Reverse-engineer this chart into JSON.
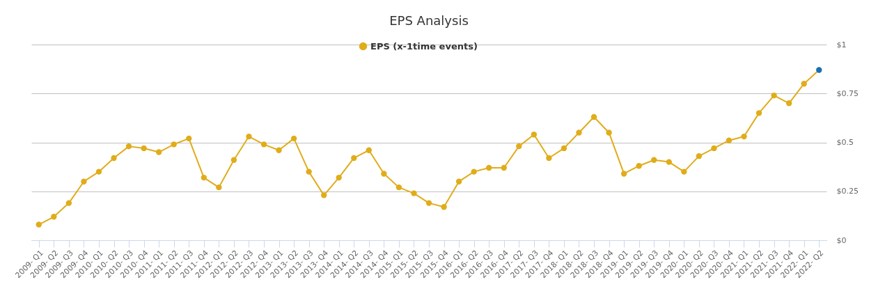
{
  "chart_data": {
    "type": "line",
    "title": "EPS Analysis",
    "categories": [
      "2009- Q1",
      "2009- Q2",
      "2009- Q3",
      "2009- Q4",
      "2010- Q1",
      "2010- Q2",
      "2010- Q3",
      "2010- Q4",
      "2011- Q1",
      "2011- Q2",
      "2011- Q3",
      "2011- Q4",
      "2012- Q1",
      "2012- Q2",
      "2012- Q3",
      "2012- Q4",
      "2013- Q1",
      "2013- Q2",
      "2013- Q3",
      "2013- Q4",
      "2014- Q1",
      "2014- Q2",
      "2014- Q3",
      "2014- Q4",
      "2015- Q1",
      "2015- Q2",
      "2015- Q3",
      "2015- Q4",
      "2016- Q1",
      "2016- Q2",
      "2016- Q3",
      "2016- Q4",
      "2017- Q2",
      "2017- Q3",
      "2017- Q4",
      "2018- Q1",
      "2018- Q2",
      "2018- Q3",
      "2018- Q4",
      "2019- Q1",
      "2019- Q2",
      "2019- Q3",
      "2019- Q4",
      "2020- Q1",
      "2020- Q2",
      "2020- Q3",
      "2020- Q4",
      "2021- Q1",
      "2021- Q2",
      "2021- Q3",
      "2021- Q4",
      "2022- Q1",
      "2022- Q2"
    ],
    "series": [
      {
        "name": "EPS (x-1time events)",
        "color": "#e0ac1a",
        "values": [
          0.08,
          0.12,
          0.19,
          0.3,
          0.35,
          0.42,
          0.48,
          0.47,
          0.45,
          0.49,
          0.52,
          0.32,
          0.27,
          0.41,
          0.53,
          0.49,
          0.46,
          0.52,
          0.35,
          0.23,
          0.32,
          0.42,
          0.46,
          0.34,
          0.27,
          0.24,
          0.19,
          0.17,
          0.3,
          0.35,
          0.37,
          0.37,
          0.48,
          0.54,
          0.42,
          0.47,
          0.55,
          0.63,
          0.55,
          0.34,
          0.38,
          0.41,
          0.4,
          0.35,
          0.43,
          0.47,
          0.51,
          0.53,
          0.65,
          0.74,
          0.7,
          0.8,
          0.87
        ],
        "colors": [
          "#e0ac1a",
          "#e0ac1a",
          "#e0ac1a",
          "#e0ac1a",
          "#e0ac1a",
          "#e0ac1a",
          "#e0ac1a",
          "#e0ac1a",
          "#e0ac1a",
          "#e0ac1a",
          "#e0ac1a",
          "#e0ac1a",
          "#e0ac1a",
          "#e0ac1a",
          "#e0ac1a",
          "#e0ac1a",
          "#e0ac1a",
          "#e0ac1a",
          "#e0ac1a",
          "#e0ac1a",
          "#e0ac1a",
          "#e0ac1a",
          "#e0ac1a",
          "#e0ac1a",
          "#e0ac1a",
          "#e0ac1a",
          "#e0ac1a",
          "#e0ac1a",
          "#e0ac1a",
          "#e0ac1a",
          "#e0ac1a",
          "#e0ac1a",
          "#e0ac1a",
          "#e0ac1a",
          "#e0ac1a",
          "#e0ac1a",
          "#e0ac1a",
          "#e0ac1a",
          "#e0ac1a",
          "#e0ac1a",
          "#e0ac1a",
          "#e0ac1a",
          "#e0ac1a",
          "#e0ac1a",
          "#e0ac1a",
          "#e0ac1a",
          "#e0ac1a",
          "#e0ac1a",
          "#e0ac1a",
          "#e0ac1a",
          "#e0ac1a",
          "#e0ac1a",
          "#1a6fb0"
        ]
      }
    ],
    "ylim": [
      0,
      1
    ],
    "yticks": [
      {
        "value": 0,
        "label": "$0"
      },
      {
        "value": 0.25,
        "label": "$0.25"
      },
      {
        "value": 0.5,
        "label": "$0.5"
      },
      {
        "value": 0.75,
        "label": "$0.75"
      },
      {
        "value": 1,
        "label": "$1"
      }
    ],
    "grid": "y",
    "legend": "top",
    "marker": "circle",
    "line_style": "solid"
  }
}
